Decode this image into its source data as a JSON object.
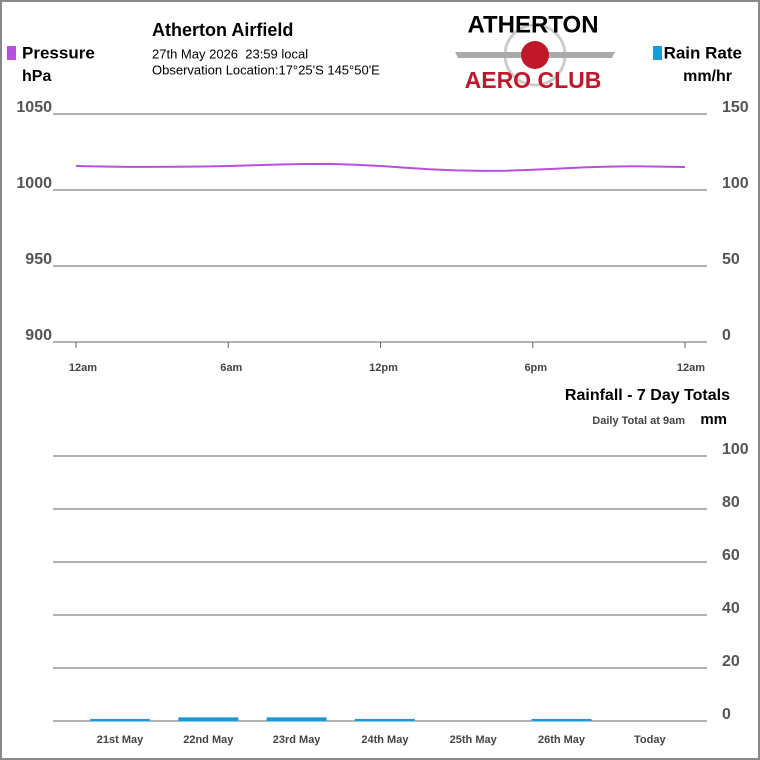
{
  "header": {
    "title": "Atherton Airfield",
    "datetime": "27th May 2026  23:59 local",
    "location": "Observation Location:17°25'S 145°50'E",
    "logo_top": "ATHERTON",
    "logo_bottom": "AERO CLUB"
  },
  "chart_data": [
    {
      "type": "line",
      "legend": [
        {
          "name": "Pressure",
          "unit": "hPa",
          "color": "#b84fe0"
        },
        {
          "name": "Rain Rate",
          "unit": "mm/hr",
          "color": "#1a9ad6"
        }
      ],
      "x": [
        0,
        1,
        2,
        3,
        4,
        5,
        6,
        7,
        8,
        9,
        10,
        11,
        12,
        13,
        14,
        15,
        16,
        17,
        18,
        19,
        20,
        21,
        22,
        23,
        24
      ],
      "xlim": [
        0,
        24
      ],
      "xticks": [
        {
          "value": 0,
          "label": "12am"
        },
        {
          "value": 6,
          "label": "6am"
        },
        {
          "value": 12,
          "label": "12pm"
        },
        {
          "value": 18,
          "label": "6pm"
        },
        {
          "value": 24,
          "label": "12am"
        }
      ],
      "series": [
        {
          "color": "#b84fe0",
          "values": [
            1015.8,
            1015.5,
            1015.2,
            1015.2,
            1015.3,
            1015.5,
            1015.8,
            1016.3,
            1016.8,
            1017.1,
            1017.2,
            1016.6,
            1015.8,
            1014.6,
            1013.6,
            1012.9,
            1012.6,
            1012.7,
            1013.3,
            1014.1,
            1014.9,
            1015.4,
            1015.6,
            1015.4,
            1015.1
          ]
        }
      ],
      "ylim": [
        900,
        1050
      ],
      "yticks": [
        900,
        950,
        1000,
        1050
      ],
      "y2lim": [
        0,
        150
      ],
      "y2ticks": [
        0,
        50,
        100,
        150
      ],
      "grid": true
    },
    {
      "type": "bar",
      "title": "Rainfall - 7 Day Totals",
      "subtitle": "Daily Total at 9am",
      "ylabel": "mm",
      "color": "#1a9ad6",
      "categories": [
        "21st May",
        "22nd May",
        "23rd May",
        "24th May",
        "25th May",
        "26th May",
        "Today"
      ],
      "values": [
        0.4,
        1,
        1,
        0.4,
        0,
        0.4,
        0
      ],
      "ylim": [
        0,
        100
      ],
      "yticks": [
        0,
        20,
        40,
        60,
        80,
        100
      ],
      "grid": true
    }
  ]
}
